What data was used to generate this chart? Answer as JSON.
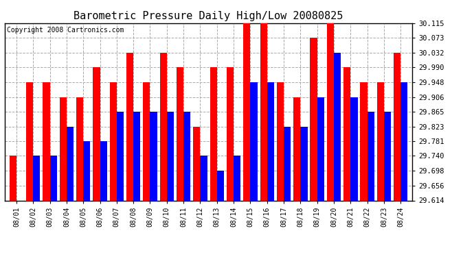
{
  "title": "Barometric Pressure Daily High/Low 20080825",
  "copyright": "Copyright 2008 Cartronics.com",
  "dates": [
    "08/01",
    "08/02",
    "08/03",
    "08/04",
    "08/05",
    "08/06",
    "08/07",
    "08/08",
    "08/09",
    "08/10",
    "08/11",
    "08/12",
    "08/13",
    "08/14",
    "08/15",
    "08/16",
    "08/17",
    "08/18",
    "08/19",
    "08/20",
    "08/21",
    "08/22",
    "08/23",
    "08/24"
  ],
  "highs": [
    29.74,
    29.948,
    29.948,
    29.906,
    29.906,
    29.99,
    29.948,
    30.032,
    29.948,
    30.032,
    29.99,
    29.823,
    29.99,
    29.99,
    30.115,
    30.115,
    29.948,
    29.906,
    30.073,
    30.115,
    29.99,
    29.948,
    29.948,
    30.032
  ],
  "lows": [
    29.614,
    29.74,
    29.74,
    29.823,
    29.781,
    29.781,
    29.865,
    29.865,
    29.865,
    29.865,
    29.865,
    29.74,
    29.698,
    29.74,
    29.948,
    29.948,
    29.823,
    29.823,
    29.906,
    30.032,
    29.906,
    29.865,
    29.865,
    29.948
  ],
  "high_color": "#FF0000",
  "low_color": "#0000FF",
  "bg_color": "#FFFFFF",
  "grid_color": "#AAAAAA",
  "yticks": [
    29.614,
    29.656,
    29.698,
    29.74,
    29.781,
    29.823,
    29.865,
    29.906,
    29.948,
    29.99,
    30.032,
    30.073,
    30.115
  ],
  "ymin": 29.614,
  "ymax": 30.115,
  "title_fontsize": 11,
  "copyright_fontsize": 7,
  "xtick_fontsize": 7,
  "ytick_fontsize": 7.5,
  "bar_width": 0.42
}
